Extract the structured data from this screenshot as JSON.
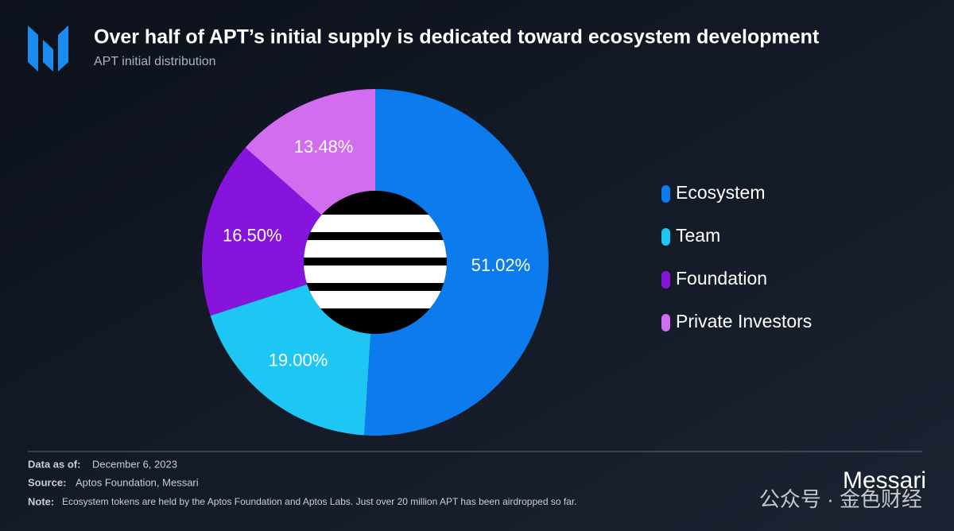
{
  "chart_data": {
    "type": "pie",
    "title": "Over half of APT’s initial supply is dedicated toward ecosystem development",
    "subtitle": "APT initial distribution",
    "categories": [
      "Ecosystem",
      "Team",
      "Foundation",
      "Private Investors"
    ],
    "values": [
      51.02,
      19.0,
      16.5,
      13.48
    ],
    "value_labels": [
      "51.02%",
      "19.00%",
      "16.50%",
      "13.48%"
    ],
    "colors": [
      "#0b7bee",
      "#1ec6f4",
      "#8714dc",
      "#d26df0"
    ]
  },
  "footer": {
    "data_as_of": {
      "label": "Data as of:",
      "text": "December 6, 2023"
    },
    "source": {
      "label": "Source:",
      "text": "Aptos Foundation, Messari"
    },
    "note": {
      "label": "Note:",
      "text": "Ecosystem tokens are held by the Aptos Foundation and Aptos Labs. Just over 20 million APT has been airdropped so far."
    }
  },
  "brand": "Messari",
  "watermark": "公众号 · 金色财经"
}
